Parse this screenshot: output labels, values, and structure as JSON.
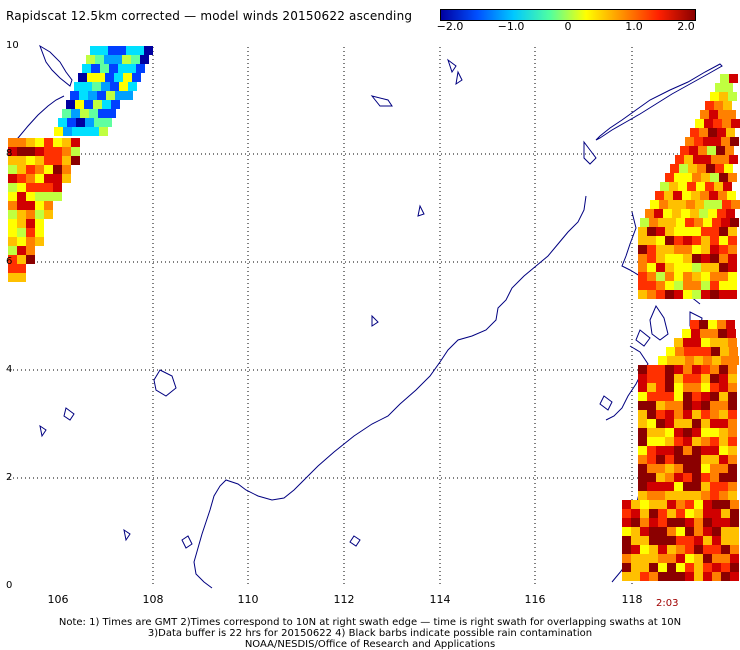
{
  "title": "Rapidscat 12.5km corrected — model winds 20150622 ascending",
  "colorbar": {
    "tick_labels": [
      "−2.0",
      "−1.0",
      "0",
      "1.0",
      "2.0"
    ],
    "colors": [
      "#0000a0",
      "#0050ff",
      "#00c8ff",
      "#50ffa0",
      "#ffff00",
      "#ff9000",
      "#ff2000",
      "#8b0000"
    ]
  },
  "map": {
    "lat_labels": [
      "10",
      "8",
      "6",
      "4",
      "2",
      "0"
    ],
    "lon_labels": [
      "106",
      "108",
      "110",
      "112",
      "114",
      "116",
      "118"
    ],
    "coast_color": "#000080",
    "grid_color": "#000000"
  },
  "time_label": "2:03",
  "notes": [
    "Note: 1) Times are GMT 2)Times correspond to 10N at right swath edge — time is right swath for overlapping swaths at 10N",
    "3)Data buffer is 22 hrs for 20150622 4) Black barbs indicate possible rain contamination",
    "NOAA/NESDIS/Office of Research and Applications"
  ]
}
